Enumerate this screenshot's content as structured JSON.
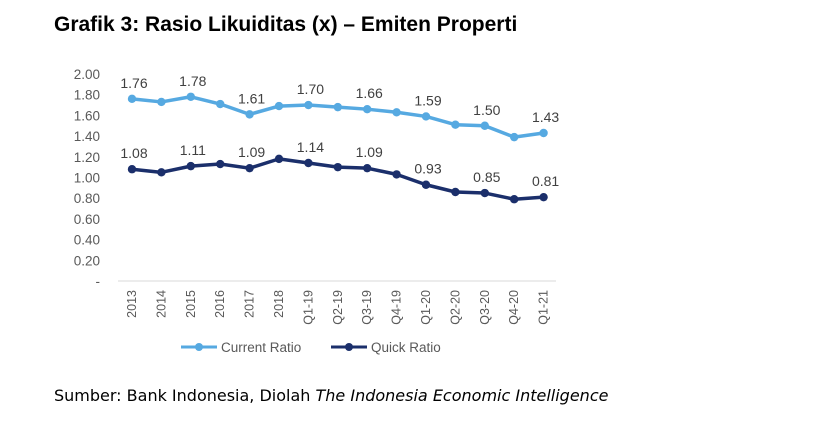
{
  "title": "Grafik 3: Rasio Likuiditas (x) – Emiten Properti",
  "source": {
    "prefix": "Sumber: Bank Indonesia, Diolah ",
    "italic": "The Indonesia Economic Intelligence"
  },
  "colors": {
    "current_ratio": "#56a9e1",
    "quick_ratio": "#1b2f6b",
    "axis_text": "#595959",
    "label_text": "#404040"
  },
  "chart_data": {
    "type": "line",
    "categories": [
      "2013",
      "2014",
      "2015",
      "2016",
      "2017",
      "2018",
      "Q1-19",
      "Q2-19",
      "Q3-19",
      "Q4-19",
      "Q1-20",
      "Q2-20",
      "Q3-20",
      "Q4-20",
      "Q1-21"
    ],
    "ylim": [
      0,
      2.0
    ],
    "y_ticks": [
      "-",
      "0.20",
      "0.40",
      "0.60",
      "0.80",
      "1.00",
      "1.20",
      "1.40",
      "1.60",
      "1.80",
      "2.00"
    ],
    "grid": false,
    "legend": "bottom",
    "series": [
      {
        "name": "Current Ratio",
        "values": [
          1.76,
          1.73,
          1.78,
          1.71,
          1.61,
          1.69,
          1.7,
          1.68,
          1.66,
          1.63,
          1.59,
          1.51,
          1.5,
          1.39,
          1.43
        ],
        "labels": [
          "1.76",
          "",
          "1.78",
          "",
          "1.61",
          "",
          "1.70",
          "",
          "1.66",
          "",
          "1.59",
          "",
          "1.50",
          "",
          "1.43"
        ]
      },
      {
        "name": "Quick Ratio",
        "values": [
          1.08,
          1.05,
          1.11,
          1.13,
          1.09,
          1.18,
          1.14,
          1.1,
          1.09,
          1.03,
          0.93,
          0.86,
          0.85,
          0.79,
          0.81
        ],
        "labels": [
          "1.08",
          "",
          "1.11",
          "",
          "1.09",
          "",
          "1.14",
          "",
          "1.09",
          "",
          "0.93",
          "",
          "0.85",
          "",
          "0.81"
        ]
      }
    ]
  }
}
